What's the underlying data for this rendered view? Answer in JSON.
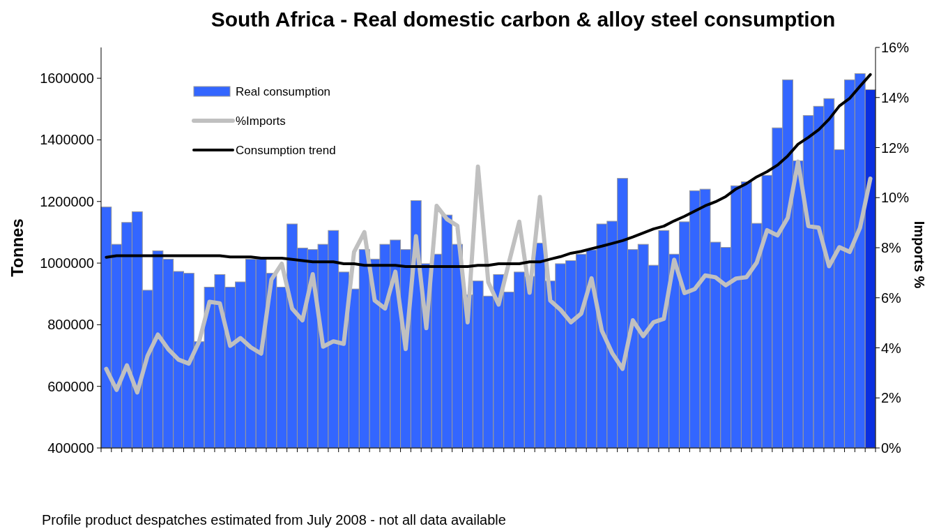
{
  "chart_data": {
    "type": "bar",
    "title": "South Africa - Real domestic carbon & alloy steel consumption",
    "ylabel": "Tonnes",
    "y2label": "Imports %",
    "annotations": [
      "Profile product despatches estimated from July 2008 - not all data available"
    ],
    "categories": [
      null,
      null,
      null,
      null,
      null,
      null,
      null,
      null,
      null,
      null,
      null,
      null,
      null,
      null,
      null,
      null,
      null,
      null,
      null,
      null,
      null,
      null,
      null,
      null,
      null,
      null,
      null,
      null,
      null,
      null,
      null,
      null,
      null,
      null,
      null,
      null,
      null,
      null,
      null,
      null,
      null,
      null,
      null,
      null,
      null,
      null,
      null,
      null,
      null,
      null,
      null,
      null,
      null,
      null,
      null,
      null,
      null,
      null,
      null,
      null,
      null,
      null,
      null,
      null,
      null,
      null,
      null,
      null,
      null,
      null,
      null,
      null,
      null,
      null,
      null
    ],
    "ylim": [
      400000,
      1700000
    ],
    "yticks": [
      400000,
      600000,
      800000,
      1000000,
      1200000,
      1400000,
      1600000
    ],
    "y2lim": [
      0,
      16
    ],
    "y2ticks": [
      {
        "value": 0,
        "label": "0%"
      },
      {
        "value": 2,
        "label": "2%"
      },
      {
        "value": 4,
        "label": "4%"
      },
      {
        "value": 6,
        "label": "6%"
      },
      {
        "value": 8,
        "label": "8%"
      },
      {
        "value": 10,
        "label": "10%"
      },
      {
        "value": 12,
        "label": "12%"
      },
      {
        "value": 14,
        "label": "14%"
      },
      {
        "value": 16,
        "label": "16%"
      }
    ],
    "grid": false,
    "legend": "top left",
    "series": [
      {
        "name": "Real consumption",
        "colors": [
          "#3366ff",
          "#3366ff",
          "#3366ff",
          "#3366ff",
          "#3366ff",
          "#3366ff",
          "#3366ff",
          "#3366ff",
          "#3366ff",
          "#3366ff",
          "#3366ff",
          "#3366ff",
          "#3366ff",
          "#3366ff",
          "#3366ff",
          "#3366ff",
          "#3366ff",
          "#3366ff",
          "#3366ff",
          "#3366ff",
          "#3366ff",
          "#3366ff",
          "#3366ff",
          "#3366ff",
          "#3366ff",
          "#3366ff",
          "#3366ff",
          "#3366ff",
          "#3366ff",
          "#3366ff",
          "#3366ff",
          "#3366ff",
          "#3366ff",
          "#3366ff",
          "#3366ff",
          "#3366ff",
          "#3366ff",
          "#3366ff",
          "#3366ff",
          "#3366ff",
          "#3366ff",
          "#3366ff",
          "#3366ff",
          "#3366ff",
          "#3366ff",
          "#3366ff",
          "#3366ff",
          "#3366ff",
          "#3366ff",
          "#3366ff",
          "#3366ff",
          "#3366ff",
          "#3366ff",
          "#3366ff",
          "#3366ff",
          "#3366ff",
          "#3366ff",
          "#3366ff",
          "#3366ff",
          "#3366ff",
          "#3366ff",
          "#3366ff",
          "#3366ff",
          "#3366ff",
          "#3366ff",
          "#3366ff",
          "#3366ff",
          "#3366ff",
          "#3366ff",
          "#3366ff",
          "#3366ff",
          "#3366ff",
          "#3366ff",
          "#3366ff",
          "#0a2fe0"
        ],
        "values": [
          1182000,
          1061000,
          1132000,
          1167000,
          912000,
          1040000,
          1013000,
          973000,
          967000,
          745000,
          922000,
          963000,
          922000,
          939000,
          1013000,
          1013000,
          967000,
          922000,
          1127000,
          1049000,
          1044000,
          1061000,
          1106000,
          971000,
          916000,
          1044000,
          1013000,
          1061000,
          1075000,
          1044000,
          1203000,
          998000,
          1029000,
          1156000,
          1061000,
          897000,
          942000,
          893000,
          963000,
          906000,
          971000,
          957000,
          1065000,
          942000,
          998000,
          1008000,
          1029000,
          1043000,
          1127000,
          1136000,
          1275000,
          1044000,
          1061000,
          993000,
          1106000,
          1029000,
          1134000,
          1235000,
          1240000,
          1068000,
          1051000,
          1251000,
          1264000,
          1129000,
          1285000,
          1439000,
          1595000,
          1332000,
          1479000,
          1509000,
          1534000,
          1368000,
          1595000,
          1615000,
          1563000
        ]
      },
      {
        "name": "%Imports",
        "type": "line",
        "axis": "y2",
        "color": "#c0c0c0",
        "values": [
          3.16,
          2.32,
          3.3,
          2.22,
          3.68,
          4.53,
          3.95,
          3.53,
          3.37,
          4.26,
          5.84,
          5.78,
          4.08,
          4.39,
          4.02,
          3.77,
          6.73,
          7.36,
          5.57,
          5.1,
          6.94,
          4.05,
          4.26,
          4.16,
          7.83,
          8.62,
          5.89,
          5.57,
          7.04,
          3.95,
          8.46,
          4.79,
          9.67,
          9.14,
          8.88,
          5.02,
          11.24,
          6.62,
          5.73,
          7.41,
          9.04,
          6.2,
          10.03,
          5.89,
          5.52,
          5.02,
          5.37,
          6.78,
          4.68,
          3.79,
          3.16,
          5.1,
          4.47,
          5.02,
          5.16,
          7.52,
          6.19,
          6.35,
          6.89,
          6.82,
          6.5,
          6.77,
          6.82,
          7.41,
          8.7,
          8.49,
          9.19,
          11.44,
          8.86,
          8.8,
          7.26,
          8.02,
          7.83,
          8.8,
          10.76
        ]
      },
      {
        "name": "Consumption trend",
        "type": "line",
        "color": "#000000",
        "values": [
          1019000,
          1024000,
          1024000,
          1024000,
          1024000,
          1024000,
          1024000,
          1024000,
          1024000,
          1024000,
          1024000,
          1024000,
          1020000,
          1020000,
          1020000,
          1016000,
          1016000,
          1016000,
          1012000,
          1008000,
          1004000,
          1004000,
          1004000,
          998000,
          998000,
          993000,
          993000,
          993000,
          993000,
          989000,
          989000,
          989000,
          989000,
          989000,
          989000,
          989000,
          993000,
          993000,
          998000,
          998000,
          998000,
          1004000,
          1004000,
          1013000,
          1021000,
          1032000,
          1038000,
          1047000,
          1055000,
          1064000,
          1073000,
          1085000,
          1098000,
          1111000,
          1120000,
          1137000,
          1152000,
          1169000,
          1186000,
          1199000,
          1216000,
          1241000,
          1258000,
          1280000,
          1297000,
          1318000,
          1348000,
          1386000,
          1408000,
          1433000,
          1467000,
          1510000,
          1535000,
          1574000,
          1612000
        ]
      }
    ]
  }
}
